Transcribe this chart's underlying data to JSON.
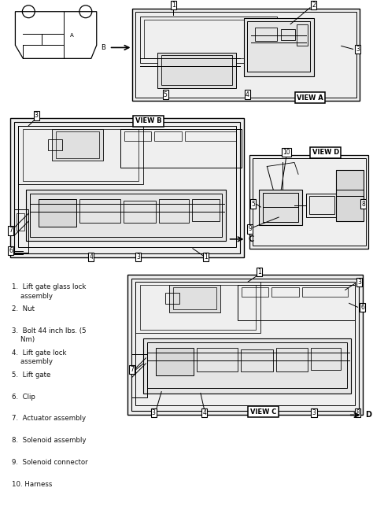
{
  "background_color": "#ffffff",
  "line_color": "#000000",
  "legend_items": [
    "1.  Lift gate glass lock\n    assembly",
    "2.  Nut",
    "3.  Bolt 44 inch lbs. (5\n    Nm)",
    "4.  Lift gate lock\n    assembly",
    "5.  Lift gate",
    "6.  Clip",
    "7.  Actuator assembly",
    "8.  Solenoid assembly",
    "9.  Solenoid connector",
    "10. Harness"
  ],
  "fig_width": 4.74,
  "fig_height": 6.48,
  "dpi": 100
}
